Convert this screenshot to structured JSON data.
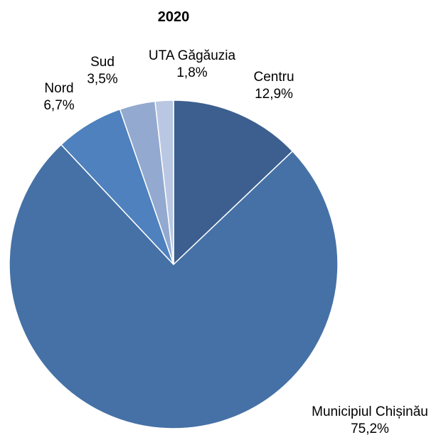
{
  "chart_data": {
    "type": "pie",
    "title": "2020",
    "start_angle_deg": 0,
    "direction": "clockwise",
    "legend": "none",
    "slices": [
      {
        "name": "Centru",
        "value": 12.9,
        "label": "12,9%",
        "color": "#3c5f8f"
      },
      {
        "name": "Municipiul Chișinău",
        "value": 75.2,
        "label": "75,2%",
        "color": "#4571a6"
      },
      {
        "name": "Nord",
        "value": 6.7,
        "label": "6,7%",
        "color": "#4e81bd"
      },
      {
        "name": "Sud",
        "value": 3.5,
        "label": "3,5%",
        "color": "#93a9cf"
      },
      {
        "name": "UTA Găgăuzia",
        "value": 1.8,
        "label": "1,8%",
        "color": "#b9c7e2"
      }
    ]
  }
}
